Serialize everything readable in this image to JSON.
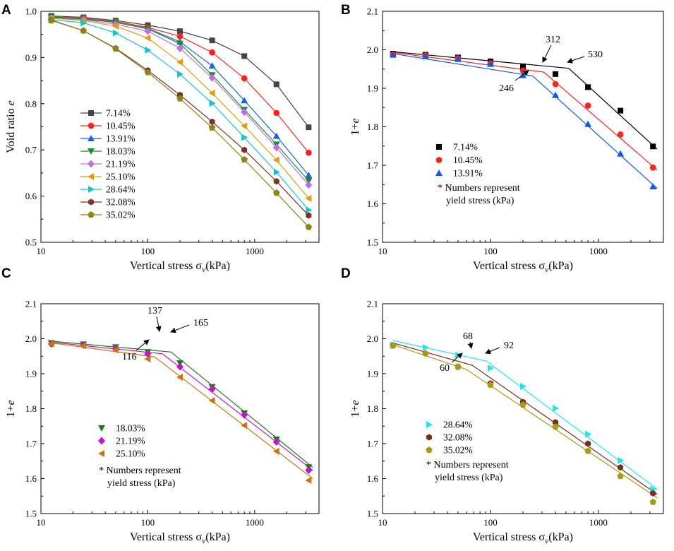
{
  "chart_data": [
    {
      "panel": "A",
      "type": "line",
      "xscale": "log",
      "xlim": [
        10,
        4000
      ],
      "ylim": [
        0.5,
        1.0
      ],
      "yticks": [
        0.5,
        0.6,
        0.7,
        0.8,
        0.9,
        1.0
      ],
      "ytick_labels": [
        "0.5",
        "0.6",
        "0.7",
        "0.8",
        "0.9",
        "1.0"
      ],
      "xticks": [
        10,
        100,
        1000
      ],
      "xtick_labels": [
        "10",
        "100",
        "1000"
      ],
      "xlabel": "Vertical stress σv(kPa)",
      "xlabel_main": "Vertical stress σ",
      "xlabel_sub": "v",
      "xlabel_tail": "(kPa)",
      "ylabel": "Void ratio e",
      "ylabel_main": "Void ratio ",
      "ylabel_var": "e",
      "x": [
        12.5,
        25,
        50,
        100,
        200,
        400,
        800,
        1600,
        3200
      ],
      "series": [
        {
          "name": "7.14%",
          "color": "#444444",
          "marker": "square",
          "values": [
            0.99,
            0.987,
            0.98,
            0.97,
            0.957,
            0.937,
            0.903,
            0.842,
            0.749
          ]
        },
        {
          "name": "10.45%",
          "color": "#ff2222",
          "marker": "circle",
          "values": [
            0.988,
            0.985,
            0.978,
            0.965,
            0.946,
            0.911,
            0.855,
            0.78,
            0.694
          ]
        },
        {
          "name": "13.91%",
          "color": "#1565e0",
          "marker": "triangle-up",
          "values": [
            0.987,
            0.983,
            0.976,
            0.963,
            0.934,
            0.882,
            0.807,
            0.73,
            0.645
          ]
        },
        {
          "name": "18.03%",
          "color": "#1d8c2c",
          "marker": "triangle-down",
          "values": [
            0.988,
            0.984,
            0.976,
            0.962,
            0.93,
            0.862,
            0.787,
            0.712,
            0.633
          ]
        },
        {
          "name": "21.19%",
          "color": "#bf6fe0",
          "marker": "diamond",
          "values": [
            0.985,
            0.982,
            0.972,
            0.957,
            0.92,
            0.856,
            0.782,
            0.705,
            0.624
          ]
        },
        {
          "name": "25.10%",
          "color": "#e39a0c",
          "marker": "triangle-left",
          "values": [
            0.985,
            0.98,
            0.968,
            0.942,
            0.89,
            0.823,
            0.752,
            0.678,
            0.595
          ]
        },
        {
          "name": "28.64%",
          "color": "#17c4cc",
          "marker": "triangle-right",
          "values": [
            0.982,
            0.975,
            0.953,
            0.916,
            0.864,
            0.801,
            0.727,
            0.652,
            0.57
          ]
        },
        {
          "name": "32.08%",
          "color": "#7a3328",
          "marker": "hexagon",
          "values": [
            0.981,
            0.958,
            0.92,
            0.872,
            0.819,
            0.761,
            0.7,
            0.632,
            0.558
          ]
        },
        {
          "name": "35.02%",
          "color": "#8b8515",
          "marker": "pentagon",
          "values": [
            0.98,
            0.958,
            0.919,
            0.868,
            0.811,
            0.748,
            0.679,
            0.607,
            0.533
          ]
        }
      ]
    },
    {
      "panel": "B",
      "type": "scatter",
      "xscale": "log",
      "xlim": [
        10,
        4000
      ],
      "ylim": [
        1.5,
        2.1
      ],
      "yticks": [
        1.5,
        1.6,
        1.7,
        1.8,
        1.9,
        2.0,
        2.1
      ],
      "ytick_labels": [
        "1.5",
        "1.6",
        "1.7",
        "1.8",
        "1.9",
        "2.0",
        "2.1"
      ],
      "xticks": [
        10,
        100,
        1000
      ],
      "xtick_labels": [
        "10",
        "100",
        "1000"
      ],
      "xlabel": "Vertical stress σv(kPa)",
      "xlabel_main": "Vertical stress σ",
      "xlabel_sub": "v",
      "xlabel_tail": "(kPa)",
      "ylabel": "1+e",
      "ylabel_main": "1+",
      "ylabel_var": "e",
      "x": [
        12.5,
        25,
        50,
        100,
        200,
        400,
        800,
        1600,
        3200
      ],
      "series": [
        {
          "name": "7.14%",
          "color": "#000000",
          "marker": "square",
          "values": [
            1.99,
            1.987,
            1.98,
            1.97,
            1.957,
            1.937,
            1.903,
            1.842,
            1.749
          ],
          "fit": [
            [
              12.5,
              1.995
            ],
            [
              530,
              1.952
            ],
            [
              3500,
              1.742
            ]
          ]
        },
        {
          "name": "10.45%",
          "color": "#ff2222",
          "marker": "circle",
          "values": [
            1.988,
            1.985,
            1.978,
            1.965,
            1.946,
            1.911,
            1.855,
            1.78,
            1.694
          ],
          "fit": [
            [
              12.5,
              1.993
            ],
            [
              312,
              1.942
            ],
            [
              3500,
              1.688
            ]
          ]
        },
        {
          "name": "13.91%",
          "color": "#1555e8",
          "marker": "triangle-up",
          "values": [
            1.987,
            1.983,
            1.976,
            1.963,
            1.934,
            1.882,
            1.807,
            1.73,
            1.645
          ],
          "fit": [
            [
              12.5,
              1.99
            ],
            [
              246,
              1.932
            ],
            [
              3500,
              1.64
            ]
          ]
        }
      ],
      "annotations": [
        {
          "text": "312",
          "x": 312
        },
        {
          "text": "530",
          "x": 530
        },
        {
          "text": "246",
          "x": 246
        }
      ],
      "note_line1": "* Numbers represent",
      "note_line2": "yield stress (kPa)"
    },
    {
      "panel": "C",
      "type": "scatter",
      "xscale": "log",
      "xlim": [
        10,
        4000
      ],
      "ylim": [
        1.5,
        2.1
      ],
      "yticks": [
        1.5,
        1.6,
        1.7,
        1.8,
        1.9,
        2.0,
        2.1
      ],
      "ytick_labels": [
        "1.5",
        "1.6",
        "1.7",
        "1.8",
        "1.9",
        "2.0",
        "2.1"
      ],
      "xticks": [
        10,
        100,
        1000
      ],
      "xtick_labels": [
        "10",
        "100",
        "1000"
      ],
      "xlabel": "Vertical stress σv(kPa)",
      "xlabel_main": "Vertical stress σ",
      "xlabel_sub": "v",
      "xlabel_tail": "(kPa)",
      "ylabel": "1+e",
      "ylabel_main": "1+",
      "ylabel_var": "e",
      "x": [
        12.5,
        25,
        50,
        100,
        200,
        400,
        800,
        1600,
        3200
      ],
      "series": [
        {
          "name": "18.03%",
          "color": "#1a7a1a",
          "marker": "triangle-down",
          "values": [
            1.988,
            1.984,
            1.976,
            1.962,
            1.93,
            1.862,
            1.787,
            1.712,
            1.633
          ],
          "fit": [
            [
              12.5,
              1.993
            ],
            [
              165,
              1.962
            ],
            [
              3500,
              1.632
            ]
          ]
        },
        {
          "name": "21.19%",
          "color": "#c018c8",
          "marker": "diamond",
          "values": [
            1.985,
            1.982,
            1.972,
            1.957,
            1.92,
            1.856,
            1.782,
            1.705,
            1.624
          ],
          "fit": [
            [
              12.5,
              1.99
            ],
            [
              137,
              1.957
            ],
            [
              3500,
              1.624
            ]
          ]
        },
        {
          "name": "25.10%",
          "color": "#c8780a",
          "marker": "triangle-left",
          "values": [
            1.985,
            1.98,
            1.968,
            1.942,
            1.89,
            1.823,
            1.752,
            1.678,
            1.595
          ],
          "fit": [
            [
              12.5,
              1.988
            ],
            [
              116,
              1.948
            ],
            [
              3500,
              1.6
            ]
          ]
        }
      ],
      "annotations": [
        {
          "text": "137",
          "x": 137
        },
        {
          "text": "165",
          "x": 165
        },
        {
          "text": "116",
          "x": 116
        }
      ],
      "note_line1": "* Numbers represent",
      "note_line2": "yield stress (kPa)"
    },
    {
      "panel": "D",
      "type": "scatter",
      "xscale": "log",
      "xlim": [
        10,
        4000
      ],
      "ylim": [
        1.5,
        2.1
      ],
      "yticks": [
        1.5,
        1.6,
        1.7,
        1.8,
        1.9,
        2.0,
        2.1
      ],
      "ytick_labels": [
        "1.5",
        "1.6",
        "1.7",
        "1.8",
        "1.9",
        "2.0",
        "2.1"
      ],
      "xticks": [
        10,
        100,
        1000
      ],
      "xtick_labels": [
        "10",
        "100",
        "1000"
      ],
      "xlabel": "Vertical stress σv(kPa)",
      "xlabel_main": "Vertical stress σ",
      "xlabel_sub": "v",
      "xlabel_tail": "(kPa)",
      "ylabel": "1+e",
      "ylabel_main": "1+",
      "ylabel_var": "e",
      "x": [
        12.5,
        25,
        50,
        100,
        200,
        400,
        800,
        1600,
        3200
      ],
      "series": [
        {
          "name": "28.64%",
          "color": "#1ee6f0",
          "marker": "triangle-right",
          "values": [
            1.982,
            1.975,
            1.953,
            1.916,
            1.864,
            1.801,
            1.727,
            1.652,
            1.57
          ],
          "fit": [
            [
              12.5,
              1.995
            ],
            [
              92,
              1.936
            ],
            [
              3500,
              1.57
            ]
          ]
        },
        {
          "name": "32.08%",
          "color": "#7a2e1e",
          "marker": "hexagon",
          "values": [
            1.981,
            1.958,
            1.92,
            1.872,
            1.819,
            1.761,
            1.7,
            1.632,
            1.558
          ],
          "fit": [
            [
              12.5,
              1.988
            ],
            [
              68,
              1.924
            ],
            [
              3500,
              1.555
            ]
          ]
        },
        {
          "name": "35.02%",
          "color": "#a89a18",
          "marker": "pentagon",
          "values": [
            1.98,
            1.958,
            1.919,
            1.868,
            1.811,
            1.748,
            1.679,
            1.607,
            1.533
          ],
          "fit": [
            [
              12.5,
              1.983
            ],
            [
              60,
              1.912
            ],
            [
              3500,
              1.545
            ]
          ]
        }
      ],
      "annotations": [
        {
          "text": "68",
          "x": 68
        },
        {
          "text": "92",
          "x": 92
        },
        {
          "text": "60",
          "x": 60
        }
      ],
      "note_line1": "* Numbers represent",
      "note_line2": "yield stress (kPa)"
    }
  ]
}
